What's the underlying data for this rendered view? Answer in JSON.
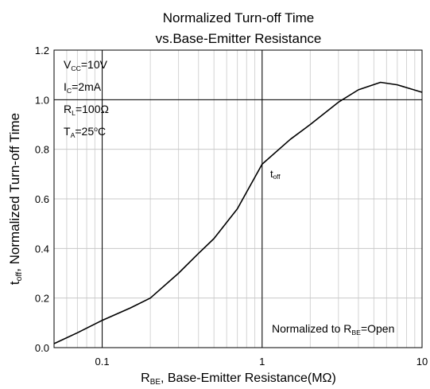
{
  "chart_data": {
    "type": "line",
    "title": [
      "Normalized Turn-off Time",
      "vs.Base-Emitter Resistance"
    ],
    "x": [
      0.05,
      0.07,
      0.1,
      0.15,
      0.2,
      0.3,
      0.4,
      0.5,
      0.7,
      1,
      1.5,
      2,
      3,
      4,
      5.5,
      7,
      10
    ],
    "values": [
      0.016,
      0.06,
      0.11,
      0.16,
      0.2,
      0.3,
      0.38,
      0.44,
      0.56,
      0.74,
      0.84,
      0.9,
      0.99,
      1.04,
      1.07,
      1.06,
      1.03
    ],
    "color": "#000000",
    "xscale": "log",
    "xlim": [
      0.05,
      10
    ],
    "xticks": [
      0.1,
      1,
      10
    ],
    "ylim": [
      0,
      1.2
    ],
    "yticks": [
      {
        "value": 0,
        "label": "0.0"
      },
      0.2,
      0.4,
      0.6,
      0.8,
      {
        "value": 1,
        "label": "1.0"
      },
      1.2
    ],
    "grid": true,
    "reference_lines": {
      "x": [
        0.1,
        1
      ],
      "y": [
        1
      ]
    },
    "x_label": [
      {
        "text": "R"
      },
      {
        "text": "BE",
        "sub": true
      },
      {
        "text": ", Base-Emitter Resistance(MΩ)"
      }
    ],
    "y_label": [
      {
        "text": "t"
      },
      {
        "text": "off",
        "sub": true
      },
      {
        "text": ", Normalized Turn-off Time"
      }
    ],
    "conditions": [
      [
        {
          "text": "V"
        },
        {
          "text": "CC",
          "sub": true
        },
        {
          "text": "=10V"
        }
      ],
      [
        {
          "text": "I"
        },
        {
          "text": "C",
          "sub": true
        },
        {
          "text": "=2mA"
        }
      ],
      [
        {
          "text": "R"
        },
        {
          "text": "L",
          "sub": true
        },
        {
          "text": "=100Ω"
        }
      ],
      [
        {
          "text": "T"
        },
        {
          "text": "A",
          "sub": true
        },
        {
          "text": "=25"
        },
        {
          "text": "o",
          "sup": true
        },
        {
          "text": "C"
        }
      ]
    ],
    "curve_label": [
      {
        "text": "t"
      },
      {
        "text": "off",
        "sub": true
      }
    ],
    "note": [
      {
        "text": "Normalized to R"
      },
      {
        "text": "BE",
        "sub": true
      },
      {
        "text": "=Open"
      }
    ]
  }
}
